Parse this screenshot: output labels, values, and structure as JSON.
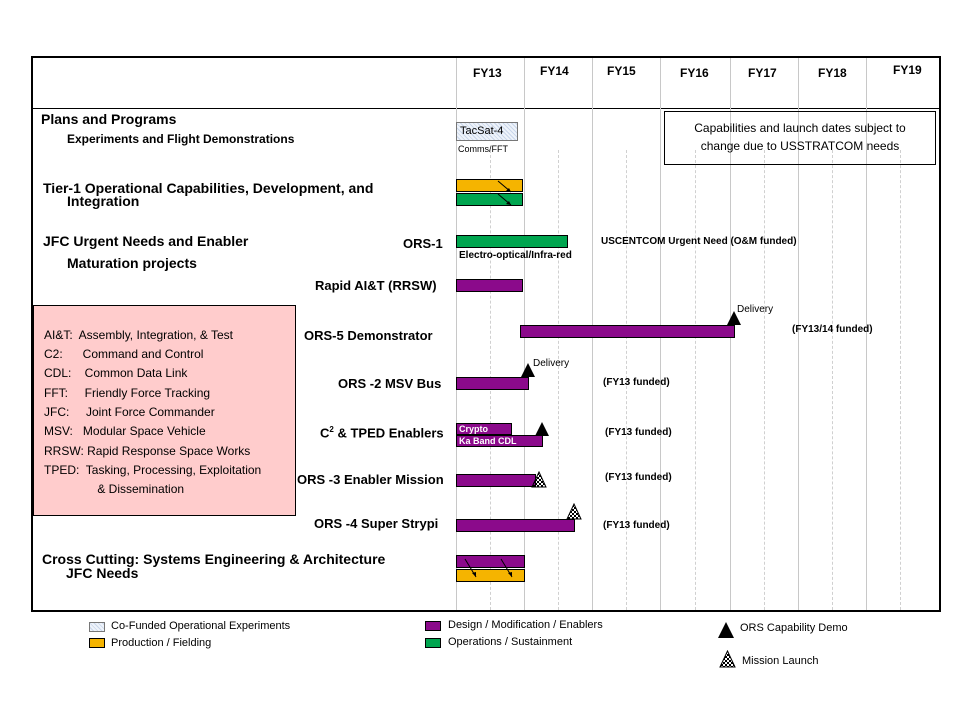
{
  "fiscal_years": [
    "FY13",
    "FY14",
    "FY15",
    "FY16",
    "FY17",
    "FY18",
    "FY19"
  ],
  "sections": {
    "plans": "Plans and Programs",
    "experiments": "Experiments and Flight Demonstrations",
    "tier1_line1": "Tier-1 Operational Capabilities, Development, and",
    "tier1_line2": "Integration",
    "jfc_line1": "JFC Urgent Needs and Enabler",
    "jfc_line2": "Maturation projects",
    "cross_line1": "Cross Cutting:  Systems Engineering & Architecture",
    "cross_line2": "JFC Needs"
  },
  "rows": {
    "tacsat": "TacSat-4",
    "tacsat_sub": "Comms/FFT",
    "ors1": "ORS-1",
    "ors1_note": "USCENTCOM  Urgent Need  (O&M funded)",
    "ors1_sub": "Electro-optical/Infra-red",
    "rapid": "Rapid AI&T (RRSW)",
    "ors5": "ORS-5 Demonstrator",
    "ors5_delivery": "Delivery",
    "ors5_note": "(FY13/14 funded)",
    "ors2": "ORS -2 MSV Bus",
    "ors2_delivery": "Delivery",
    "ors2_note": "(FY13 funded)",
    "c2_prefix": "C",
    "c2_sup": "2",
    "c2_suffix": " & TPED Enablers",
    "c2_crypto": "Crypto",
    "c2_ka": "Ka Band CDL",
    "c2_note": "(FY13 funded)",
    "ors3": "ORS -3 Enabler Mission",
    "ors3_note": "(FY13 funded)",
    "ors4": "ORS -4 Super Strypi",
    "ors4_note": "(FY13 funded)"
  },
  "capabilities_note": [
    "Capabilities and launch dates subject to",
    "change due to USSTRATCOM needs"
  ],
  "abbreviations": [
    "AI&T:  Assembly, Integration, & Test",
    "C2:      Command and Control",
    "CDL:    Common Data Link",
    "FFT:     Friendly Force Tracking",
    "JFC:     Joint Force Commander",
    "MSV:   Modular Space Vehicle",
    "RRSW: Rapid Response Space Works",
    "TPED:  Tasking, Processing, Exploitation",
    "       & Dissemination"
  ],
  "legend": {
    "cofunded": "Co-Funded Operational Experiments",
    "production": "Production / Fielding",
    "design": "Design / Modification / Enablers",
    "operations": "Operations / Sustainment",
    "demo": "ORS Capability Demo",
    "launch": "Mission Launch"
  },
  "colors": {
    "design": "#8b0a8b",
    "operations": "#00a54f",
    "production": "#f5b400",
    "abbr_box": "#ffcccc"
  }
}
